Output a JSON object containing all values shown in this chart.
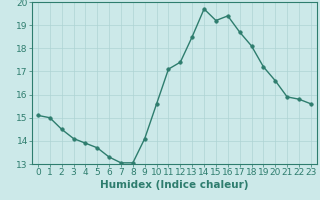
{
  "xlabel": "Humidex (Indice chaleur)",
  "background_color": "#cce9e9",
  "line_color": "#2e7d6e",
  "marker_color": "#2e7d6e",
  "x": [
    0,
    1,
    2,
    3,
    4,
    5,
    6,
    7,
    8,
    9,
    10,
    11,
    12,
    13,
    14,
    15,
    16,
    17,
    18,
    19,
    20,
    21,
    22,
    23
  ],
  "y": [
    15.1,
    15.0,
    14.5,
    14.1,
    13.9,
    13.7,
    13.3,
    13.05,
    13.05,
    14.1,
    15.6,
    17.1,
    17.4,
    18.5,
    19.7,
    19.2,
    19.4,
    18.7,
    18.1,
    17.2,
    16.6,
    15.9,
    15.8,
    15.6
  ],
  "ylim": [
    13,
    20
  ],
  "yticks": [
    13,
    14,
    15,
    16,
    17,
    18,
    19,
    20
  ],
  "xticks": [
    0,
    1,
    2,
    3,
    4,
    5,
    6,
    7,
    8,
    9,
    10,
    11,
    12,
    13,
    14,
    15,
    16,
    17,
    18,
    19,
    20,
    21,
    22,
    23
  ],
  "grid_color": "#aed4d4",
  "tick_color": "#2e7d6e",
  "label_color": "#2e7d6e",
  "xlabel_fontsize": 7.5,
  "tick_fontsize": 6.5,
  "linewidth": 1.0,
  "markersize": 2.5
}
